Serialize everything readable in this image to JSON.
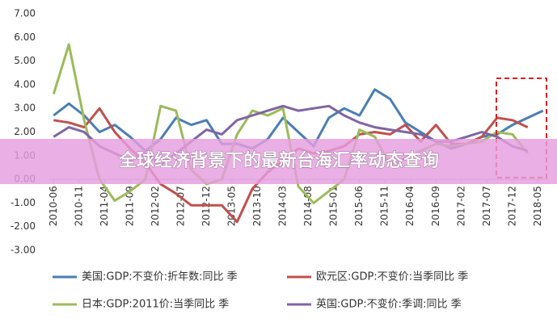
{
  "overlay_title": "全球经济背景下的最新台海汇率动态查询",
  "chart_data": {
    "type": "line",
    "x": [
      "2010-06",
      "2010-09",
      "2010-12",
      "2011-03",
      "2011-06",
      "2011-09",
      "2011-12",
      "2012-03",
      "2012-06",
      "2012-09",
      "2012-12",
      "2013-03",
      "2013-06",
      "2013-09",
      "2013-12",
      "2014-03",
      "2014-06",
      "2014-09",
      "2014-12",
      "2015-03",
      "2015-06",
      "2015-09",
      "2015-12",
      "2016-03",
      "2016-06",
      "2016-09",
      "2016-12",
      "2017-03",
      "2017-06",
      "2017-09",
      "2017-12",
      "2018-03",
      "2018-06"
    ],
    "xlim": [
      "2010-05",
      "2018-07"
    ],
    "xticks": [
      "2010-06",
      "2010-11",
      "2011-04",
      "2011-09",
      "2012-02",
      "2012-07",
      "2012-12",
      "2013-05",
      "2013-10",
      "2014-03",
      "2014-08",
      "2015-01",
      "2015-06",
      "2015-11",
      "2016-04",
      "2016-09",
      "2017-02",
      "2017-07",
      "2017-12",
      "2018-05"
    ],
    "ylim": [
      -3,
      7
    ],
    "yticks": [
      {
        "value": 7,
        "label": "7.00"
      },
      {
        "value": 6,
        "label": "6.00"
      },
      {
        "value": 5,
        "label": "5.00"
      },
      {
        "value": 4,
        "label": "4.00"
      },
      {
        "value": 3,
        "label": "3.00"
      },
      {
        "value": 2,
        "label": "2.00"
      },
      {
        "value": 1,
        "label": "1.00"
      },
      {
        "value": 0,
        "label": "0.00"
      },
      {
        "value": -1,
        "label": "-1.00"
      },
      {
        "value": -2,
        "label": "-2.00"
      },
      {
        "value": -3,
        "label": "-3.00"
      }
    ],
    "series": [
      {
        "name": "美国:GDP:不变价:折年数:同比 季",
        "color": "#4a7eb5",
        "values": [
          2.7,
          3.2,
          2.7,
          2.0,
          2.3,
          1.8,
          1.2,
          1.7,
          2.6,
          2.3,
          2.5,
          1.5,
          1.5,
          1.3,
          1.7,
          2.6,
          2.0,
          1.4,
          2.6,
          3.0,
          2.7,
          3.8,
          3.4,
          2.4,
          2.0,
          1.6,
          1.3,
          1.5,
          1.8,
          1.9,
          2.3,
          2.6,
          2.9
        ]
      },
      {
        "name": "欧元区:GDP:不变价:当季同比 季",
        "color": "#c0504d",
        "values": [
          2.5,
          2.4,
          2.2,
          3.0,
          2.0,
          1.3,
          0.7,
          -0.2,
          -0.6,
          -1.1,
          -1.1,
          -1.1,
          -1.8,
          -0.4,
          0.3,
          0.8,
          1.3,
          1.1,
          1.2,
          1.4,
          1.9,
          2.0,
          1.9,
          2.3,
          1.6,
          2.3,
          1.5,
          1.5,
          1.8,
          2.6,
          2.5,
          2.2,
          null
        ]
      },
      {
        "name": "日本:GDP:2011价:当季同比 季",
        "color": "#9bbb59",
        "values": [
          3.6,
          5.7,
          2.5,
          0.0,
          -0.9,
          -0.5,
          0.0,
          3.1,
          2.9,
          0.4,
          -0.2,
          0.0,
          1.9,
          2.9,
          2.7,
          3.0,
          -0.3,
          -1.0,
          -0.5,
          0.0,
          2.1,
          1.8,
          0.6,
          0.9,
          1.2,
          1.5,
          1.4,
          1.5,
          1.6,
          2.0,
          1.9,
          1.1,
          null
        ]
      },
      {
        "name": "英国:GDP:不变价:季调:同比 季",
        "color": "#8064a2",
        "values": [
          1.8,
          2.2,
          2.0,
          1.4,
          1.1,
          0.8,
          1.1,
          0.6,
          1.1,
          1.6,
          2.1,
          1.9,
          2.5,
          2.7,
          2.9,
          3.1,
          2.9,
          3.0,
          3.1,
          2.7,
          2.4,
          2.2,
          2.1,
          2.0,
          1.9,
          1.6,
          1.6,
          1.8,
          2.0,
          1.8,
          1.4,
          1.2,
          null
        ]
      }
    ]
  }
}
